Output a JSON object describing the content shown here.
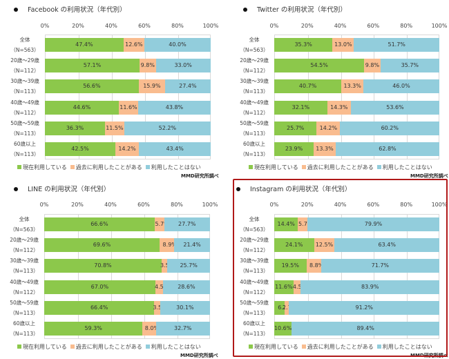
{
  "legend": {
    "items": [
      {
        "label": "現在利用している",
        "color": "#8cc84b"
      },
      {
        "label": "過去に利用したことがある",
        "color": "#f9bc8f"
      },
      {
        "label": "利用したことはない",
        "color": "#92cddc"
      }
    ]
  },
  "credit": "MMD研究所調べ",
  "categories": [
    {
      "name": "全体",
      "n": "（N=563）"
    },
    {
      "name": "20歳～29歳",
      "n": "（N=112）"
    },
    {
      "name": "30歳～39歳",
      "n": "（N=113）"
    },
    {
      "name": "40歳～49歳",
      "n": "（N=112）"
    },
    {
      "name": "50歳～59歳",
      "n": "（N=113）"
    },
    {
      "name": "60歳以上",
      "n": "（N=113）"
    }
  ],
  "x_ticks": [
    "0%",
    "20%",
    "40%",
    "60%",
    "80%",
    "100%"
  ],
  "chart_data": [
    {
      "type": "bar",
      "orientation": "horizontal",
      "stacked": true,
      "title": "Facebook の利用状況（年代別）",
      "categories": [
        "全体 (N=563)",
        "20歳～29歳 (N=112)",
        "30歳～39歳 (N=113)",
        "40歳～49歳 (N=112)",
        "50歳～59歳 (N=113)",
        "60歳以上 (N=113)"
      ],
      "xlim": [
        0,
        100
      ],
      "x_ticks": [
        "0%",
        "20%",
        "40%",
        "60%",
        "80%",
        "100%"
      ],
      "grid": true,
      "legend_position": "bottom",
      "series": [
        {
          "name": "現在利用している",
          "values": [
            47.4,
            57.1,
            56.6,
            44.6,
            36.3,
            42.5
          ]
        },
        {
          "name": "過去に利用したことがある",
          "values": [
            12.6,
            9.8,
            15.9,
            11.6,
            11.5,
            14.2
          ]
        },
        {
          "name": "利用したことはない",
          "values": [
            40.0,
            33.0,
            27.4,
            43.8,
            52.2,
            43.4
          ]
        }
      ]
    },
    {
      "type": "bar",
      "orientation": "horizontal",
      "stacked": true,
      "title": "Twitter の利用状況（年代別）",
      "categories": [
        "全体 (N=563)",
        "20歳～29歳 (N=112)",
        "30歳～39歳 (N=113)",
        "40歳～49歳 (N=112)",
        "50歳～59歳 (N=113)",
        "60歳以上 (N=113)"
      ],
      "xlim": [
        0,
        100
      ],
      "x_ticks": [
        "0%",
        "20%",
        "40%",
        "60%",
        "80%",
        "100%"
      ],
      "grid": true,
      "legend_position": "bottom",
      "series": [
        {
          "name": "現在利用している",
          "values": [
            35.3,
            54.5,
            40.7,
            32.1,
            25.7,
            23.9
          ]
        },
        {
          "name": "過去に利用したことがある",
          "values": [
            13.0,
            9.8,
            13.3,
            14.3,
            14.2,
            13.3
          ]
        },
        {
          "name": "利用したことはない",
          "values": [
            51.7,
            35.7,
            46.0,
            53.6,
            60.2,
            62.8
          ]
        }
      ]
    },
    {
      "type": "bar",
      "orientation": "horizontal",
      "stacked": true,
      "title": "LINE の利用状況（年代別）",
      "categories": [
        "全体 (N=563)",
        "20歳～29歳 (N=112)",
        "30歳～39歳 (N=113)",
        "40歳～49歳 (N=112)",
        "50歳～59歳 (N=113)",
        "60歳以上 (N=113)"
      ],
      "xlim": [
        0,
        100
      ],
      "x_ticks": [
        "0%",
        "20%",
        "40%",
        "60%",
        "80%",
        "100%"
      ],
      "grid": true,
      "legend_position": "bottom",
      "series": [
        {
          "name": "現在利用している",
          "values": [
            66.6,
            69.6,
            70.8,
            67.0,
            66.4,
            59.3
          ]
        },
        {
          "name": "過去に利用したことがある",
          "values": [
            5.7,
            8.9,
            3.5,
            4.5,
            3.5,
            8.0
          ]
        },
        {
          "name": "利用したことはない",
          "values": [
            27.7,
            21.4,
            25.7,
            28.6,
            30.1,
            32.7
          ]
        }
      ]
    },
    {
      "type": "bar",
      "orientation": "horizontal",
      "stacked": true,
      "title": "Instagram の利用状況（年代別）",
      "categories": [
        "全体 (N=563)",
        "20歳～29歳 (N=112)",
        "30歳～39歳 (N=113)",
        "40歳～49歳 (N=112)",
        "50歳～59歳 (N=113)",
        "60歳以上 (N=113)"
      ],
      "xlim": [
        0,
        100
      ],
      "x_ticks": [
        "0%",
        "20%",
        "40%",
        "60%",
        "80%",
        "100%"
      ],
      "grid": true,
      "legend_position": "bottom",
      "highlighted": true,
      "series": [
        {
          "name": "現在利用している",
          "values": [
            14.4,
            24.1,
            19.5,
            11.6,
            6.2,
            10.6
          ]
        },
        {
          "name": "過去に利用したことがある",
          "values": [
            5.7,
            12.5,
            8.8,
            4.5,
            2.7,
            null
          ]
        },
        {
          "name": "利用したことはない",
          "values": [
            79.9,
            63.4,
            71.7,
            83.9,
            91.2,
            89.4
          ]
        }
      ]
    }
  ]
}
